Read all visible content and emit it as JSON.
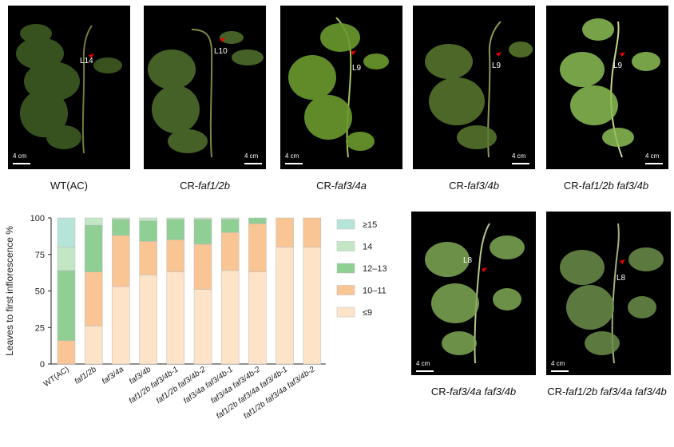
{
  "panels": [
    {
      "leaf_label": "L14",
      "scale": "4 cm",
      "caption_prefix": "",
      "caption_italic": "WT(AC)"
    },
    {
      "leaf_label": "L10",
      "scale": "4 cm",
      "caption_prefix": "CR-",
      "caption_italic": "faf1/2b"
    },
    {
      "leaf_label": "L9",
      "scale": "4 cm",
      "caption_prefix": "CR-",
      "caption_italic": "faf3/4a"
    },
    {
      "leaf_label": "L9",
      "scale": "4 cm",
      "caption_prefix": "CR-",
      "caption_italic": "faf3/4b"
    },
    {
      "leaf_label": "L9",
      "scale": "4 cm",
      "caption_prefix": "CR-",
      "caption_italic": "faf1/2b faf3/4b"
    },
    {
      "leaf_label": "L8",
      "scale": "4 cm",
      "caption_prefix": "CR-",
      "caption_italic": "faf3/4a faf3/4b"
    },
    {
      "leaf_label": "L8",
      "scale": "4 cm",
      "caption_prefix": "CR-",
      "caption_italic": "faf1/2b faf3/4a faf3/4b"
    }
  ],
  "chart_data": {
    "type": "bar",
    "stacked": true,
    "ylabel": "Leaves to first inflorescence %",
    "xlabel": "",
    "ylim": [
      0,
      100
    ],
    "yticks": [
      0,
      25,
      50,
      75,
      100
    ],
    "categories": [
      "WT(AC)",
      "faf1/2b",
      "faf3/4a",
      "faf3/4b",
      "faf1/2b faf3/4b-1",
      "faf1/2b faf3/4b-2",
      "faf3/4a faf3/4b-1",
      "faf3/4a faf3/4b-2",
      "faf1/2b faf3/4a faf3/4b-1",
      "faf1/2b faf3/4a faf3/4b-2"
    ],
    "series": [
      {
        "name": "≤9",
        "color": "#fde3c7",
        "values": [
          0,
          26,
          53,
          61,
          63,
          51,
          64,
          63,
          80,
          80
        ]
      },
      {
        "name": "10–11",
        "color": "#f9c594",
        "values": [
          16,
          37,
          35,
          23,
          22,
          31,
          26,
          33,
          20,
          20
        ]
      },
      {
        "name": "12–13",
        "color": "#8fcf94",
        "values": [
          48,
          32,
          11,
          14,
          14,
          17,
          9,
          4,
          0,
          0
        ]
      },
      {
        "name": "14",
        "color": "#c3e6c5",
        "values": [
          16,
          5,
          1,
          2,
          1,
          1,
          1,
          0,
          0,
          0
        ]
      },
      {
        "name": "≥15",
        "color": "#b7e4d8",
        "values": [
          20,
          0,
          0,
          0,
          0,
          0,
          0,
          0,
          0,
          0
        ]
      }
    ],
    "legend_order": [
      "≥15",
      "14",
      "12–13",
      "10–11",
      "≤9"
    ],
    "legend_position": "right"
  }
}
